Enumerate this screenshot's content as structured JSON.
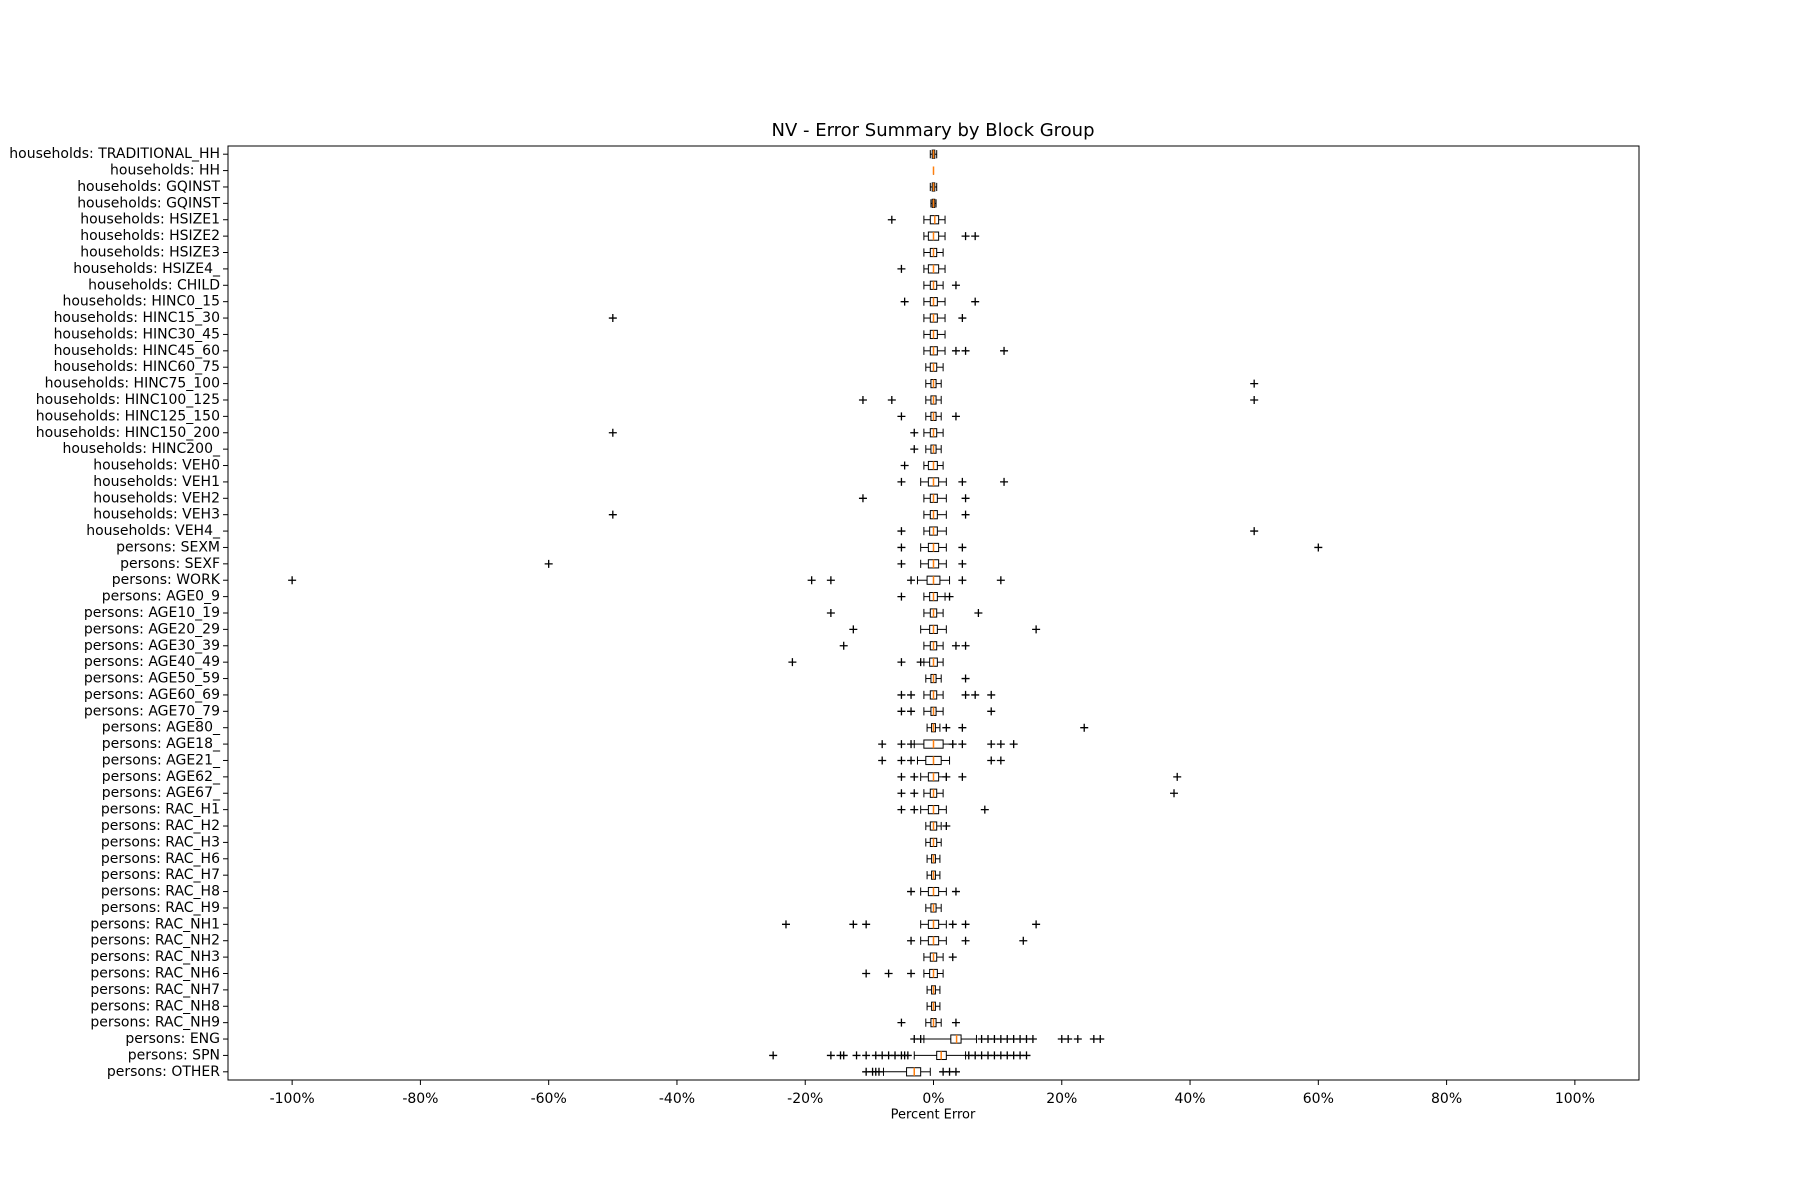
{
  "chart_data": {
    "type": "boxplot",
    "title": "NV - Error Summary by Block Group",
    "x_label": "Percent Error",
    "orientation": "horizontal",
    "xlim": [
      -110,
      110
    ],
    "xticks": [
      {
        "value": -100,
        "label": "-100%"
      },
      {
        "value": -80,
        "label": "-80%"
      },
      {
        "value": -60,
        "label": "-60%"
      },
      {
        "value": -40,
        "label": "-40%"
      },
      {
        "value": -20,
        "label": "-20%"
      },
      {
        "value": 0,
        "label": "0%"
      },
      {
        "value": 20,
        "label": "20%"
      },
      {
        "value": 40,
        "label": "40%"
      },
      {
        "value": 60,
        "label": "60%"
      },
      {
        "value": 80,
        "label": "80%"
      },
      {
        "value": 100,
        "label": "100%"
      }
    ],
    "box_color": "#000000",
    "median_color": "#ff7f0e",
    "categories": [
      "households: TRADITIONAL_HH",
      "households: HH",
      "households: GQINST",
      "households: GQINST",
      "households: HSIZE1",
      "households: HSIZE2",
      "households: HSIZE3",
      "households: HSIZE4_",
      "households: CHILD",
      "households: HINC0_15",
      "households: HINC15_30",
      "households: HINC30_45",
      "households: HINC45_60",
      "households: HINC60_75",
      "households: HINC75_100",
      "households: HINC100_125",
      "households: HINC125_150",
      "households: HINC150_200",
      "households: HINC200_",
      "households: VEH0",
      "households: VEH1",
      "households: VEH2",
      "households: VEH3",
      "households: VEH4_",
      "persons: SEXM",
      "persons: SEXF",
      "persons: WORK",
      "persons: AGE0_9",
      "persons: AGE10_19",
      "persons: AGE20_29",
      "persons: AGE30_39",
      "persons: AGE40_49",
      "persons: AGE50_59",
      "persons: AGE60_69",
      "persons: AGE70_79",
      "persons: AGE80_",
      "persons: AGE18_",
      "persons: AGE21_",
      "persons: AGE62_",
      "persons: AGE67_",
      "persons: RAC_H1",
      "persons: RAC_H2",
      "persons: RAC_H3",
      "persons: RAC_H6",
      "persons: RAC_H7",
      "persons: RAC_H8",
      "persons: RAC_H9",
      "persons: RAC_NH1",
      "persons: RAC_NH2",
      "persons: RAC_NH3",
      "persons: RAC_NH6",
      "persons: RAC_NH7",
      "persons: RAC_NH8",
      "persons: RAC_NH9",
      "persons: ENG",
      "persons: SPN",
      "persons: OTHER"
    ],
    "whisker_low": [
      -0.5,
      0,
      -0.5,
      -0.4,
      -1.5,
      -1.5,
      -1.5,
      -1.5,
      -1.5,
      -1.5,
      -1.5,
      -1.5,
      -1.5,
      -1.2,
      -1.2,
      -1.2,
      -1.2,
      -1.5,
      -1.2,
      -1.5,
      -2,
      -1.5,
      -1.5,
      -1.5,
      -2,
      -2,
      -2.5,
      -1.5,
      -1.5,
      -2,
      -1.5,
      -1.5,
      -1.2,
      -1.5,
      -1.5,
      -1,
      -3,
      -2.5,
      -2,
      -1.5,
      -2,
      -1.2,
      -1.2,
      -1,
      -1,
      -2,
      -1.2,
      -2,
      -2,
      -1.5,
      -1.5,
      -1,
      -1,
      -1.2,
      -1.5,
      -3,
      -7.8
    ],
    "q1": [
      -0.2,
      0,
      -0.2,
      -0.2,
      -0.5,
      -0.8,
      -0.5,
      -0.8,
      -0.5,
      -0.5,
      -0.5,
      -0.5,
      -0.5,
      -0.5,
      -0.4,
      -0.4,
      -0.4,
      -0.5,
      -0.4,
      -0.8,
      -0.8,
      -0.5,
      -0.5,
      -0.6,
      -0.8,
      -0.8,
      -1,
      -0.6,
      -0.5,
      -0.6,
      -0.5,
      -0.6,
      -0.4,
      -0.5,
      -0.4,
      -0.3,
      -1.5,
      -1.2,
      -0.8,
      -0.5,
      -0.8,
      -0.5,
      -0.5,
      -0.3,
      -0.3,
      -0.8,
      -0.4,
      -0.8,
      -0.8,
      -0.5,
      -0.6,
      -0.3,
      -0.3,
      -0.4,
      2.7,
      0.5,
      -4.2
    ],
    "median": [
      0,
      0,
      0,
      0,
      0.2,
      0,
      0,
      0,
      0,
      0,
      0,
      0,
      0,
      0,
      0,
      0,
      0,
      0,
      0,
      0,
      0,
      0,
      0,
      0,
      0,
      0,
      0,
      0,
      0,
      0,
      0,
      0,
      0,
      0,
      0,
      0,
      0,
      0,
      0,
      0,
      0,
      0,
      0,
      0,
      0,
      0,
      0,
      0,
      0,
      0,
      0,
      0,
      0,
      0,
      3.6,
      1.2,
      -3
    ],
    "q3": [
      0.2,
      0,
      0.2,
      0.2,
      0.8,
      0.8,
      0.5,
      0.8,
      0.5,
      0.6,
      0.6,
      0.6,
      0.6,
      0.5,
      0.4,
      0.4,
      0.4,
      0.5,
      0.4,
      0.6,
      0.8,
      0.6,
      0.6,
      0.6,
      0.8,
      0.8,
      1,
      0.6,
      0.5,
      0.6,
      0.5,
      0.6,
      0.4,
      0.5,
      0.4,
      0.3,
      1.5,
      1.2,
      0.8,
      0.5,
      0.8,
      0.5,
      0.5,
      0.3,
      0.3,
      0.8,
      0.4,
      0.8,
      0.8,
      0.5,
      0.6,
      0.3,
      0.3,
      0.4,
      4.3,
      2,
      -2
    ],
    "whisker_high": [
      0.5,
      0,
      0.5,
      0.4,
      1.8,
      1.8,
      1.5,
      1.8,
      1.5,
      1.8,
      1.8,
      1.8,
      1.8,
      1.5,
      1.2,
      1.2,
      1.2,
      1.5,
      1.2,
      1.5,
      2,
      2,
      2,
      2,
      2,
      2,
      2.5,
      1.8,
      1.5,
      2,
      1.5,
      1.5,
      1.2,
      1.5,
      1.5,
      1,
      3,
      2.5,
      2,
      1.5,
      2,
      1.2,
      1.2,
      1,
      1,
      2,
      1.2,
      2,
      2,
      1.5,
      1.5,
      1,
      1,
      1.2,
      6.7,
      5,
      -0.5
    ],
    "outliers": [
      [],
      [],
      [],
      [],
      [
        -6.5
      ],
      [
        5,
        6.5
      ],
      [],
      [
        -5
      ],
      [
        3.5
      ],
      [
        -4.5,
        6.5
      ],
      [
        -50,
        4.5
      ],
      [],
      [
        3.5,
        5,
        11
      ],
      [],
      [
        50
      ],
      [
        -11,
        -6.5,
        50
      ],
      [
        -5,
        3.5
      ],
      [
        -50,
        -3
      ],
      [
        -3
      ],
      [
        -4.5
      ],
      [
        -5,
        4.5,
        11
      ],
      [
        -11,
        5
      ],
      [
        -50,
        5
      ],
      [
        -5,
        50
      ],
      [
        -5,
        4.5,
        60
      ],
      [
        -60,
        -5,
        4.5
      ],
      [
        -100,
        -19,
        -16,
        -3.5,
        4.5,
        10.5
      ],
      [
        -5,
        2.5
      ],
      [
        -16,
        7
      ],
      [
        -12.5,
        16
      ],
      [
        -14,
        3.5,
        5
      ],
      [
        -22,
        -5,
        -2
      ],
      [
        5
      ],
      [
        -5,
        -3.5,
        5,
        6.5,
        9
      ],
      [
        -5,
        -3.5,
        9
      ],
      [
        2,
        4.5,
        23.5
      ],
      [
        -8,
        -5,
        -3.5,
        3,
        4.5,
        9,
        10.5,
        12.5
      ],
      [
        -8,
        -5,
        -3.5,
        9,
        10.5
      ],
      [
        -5,
        -3,
        2,
        4.5,
        38
      ],
      [
        -5,
        -3,
        37.5
      ],
      [
        -5,
        -3,
        8
      ],
      [
        2
      ],
      [],
      [],
      [],
      [
        -3.5,
        3.5
      ],
      [],
      [
        -23,
        -12.5,
        -10.5,
        3,
        5,
        16
      ],
      [
        -3.5,
        5,
        14
      ],
      [
        3
      ],
      [
        -10.5,
        -7,
        -3.5
      ],
      [],
      [],
      [
        -5,
        3.5
      ],
      [
        -3,
        -2,
        7.5,
        8.5,
        9.5,
        10.5,
        11.5,
        12.5,
        13.5,
        14.5,
        15.5,
        20,
        21,
        22.5,
        25,
        26
      ],
      [
        -25,
        -16,
        -14.5,
        -14,
        -12,
        -10.5,
        -9,
        -8,
        -7,
        -6,
        -5,
        -4.5,
        -4,
        5.5,
        6.5,
        7.5,
        8.5,
        9.5,
        10.5,
        11.5,
        12.5,
        13.5,
        14.5
      ],
      [
        -10.5,
        -9.5,
        -9,
        -8.5,
        1.5,
        2.5,
        3.5
      ]
    ]
  }
}
